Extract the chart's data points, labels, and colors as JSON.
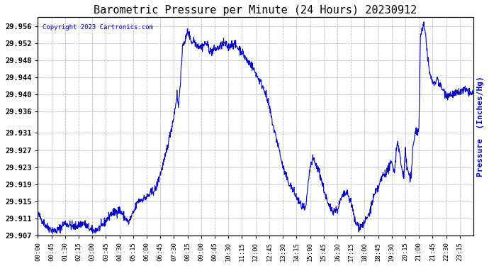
{
  "title": "Barometric Pressure per Minute (24 Hours) 20230912",
  "copyright": "Copyright 2023 Cartronics.com",
  "ylabel": "Pressure  (Inches/Hg)",
  "line_color": "#0000cc",
  "ylabel_color": "#0000cc",
  "copyright_color": "#0000cc",
  "background_color": "#ffffff",
  "grid_color": "#c0c0c0",
  "ylim_min": 29.907,
  "ylim_max": 29.958,
  "yticks": [
    29.907,
    29.911,
    29.915,
    29.919,
    29.923,
    29.927,
    29.931,
    29.936,
    29.94,
    29.944,
    29.948,
    29.952,
    29.956
  ],
  "xtick_labels": [
    "00:00",
    "00:45",
    "01:30",
    "02:15",
    "03:00",
    "03:45",
    "04:30",
    "05:15",
    "06:00",
    "06:45",
    "07:30",
    "08:15",
    "09:00",
    "09:45",
    "10:30",
    "11:15",
    "12:00",
    "12:45",
    "13:30",
    "14:15",
    "15:00",
    "15:45",
    "16:30",
    "17:15",
    "18:00",
    "18:45",
    "19:30",
    "20:15",
    "21:00",
    "21:45",
    "22:30",
    "23:15"
  ]
}
